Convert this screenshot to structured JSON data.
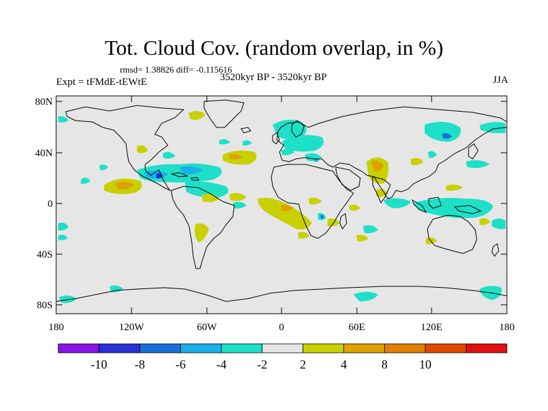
{
  "title": "Tot. Cloud Cov. (random overlap, in %)",
  "stats": "rmsd= 1.38826 diff= -0.115616",
  "experiment": "Expt = tFMdE-tEWtE",
  "period": "3520kyr BP - 3520kyr BP",
  "season": "JJA",
  "lat_ticks": [
    "80N",
    "40N",
    "0",
    "40S",
    "80S"
  ],
  "lon_ticks": [
    "180",
    "120W",
    "60W",
    "0",
    "60E",
    "120E",
    "180"
  ],
  "colorbar": {
    "labels": [
      "-10",
      "-8",
      "-6",
      "-4",
      "-2",
      "2",
      "4",
      "8",
      "10"
    ],
    "colors": [
      "#8a12e6",
      "#2b2fd6",
      "#1a6fd8",
      "#18b0e6",
      "#1ee0c8",
      "#e6e6e6",
      "#c8d000",
      "#e0a000",
      "#e08000",
      "#e04800",
      "#e01010"
    ]
  },
  "map": {
    "background_color": "#e6e6e6",
    "coastline_color": "#000000"
  }
}
